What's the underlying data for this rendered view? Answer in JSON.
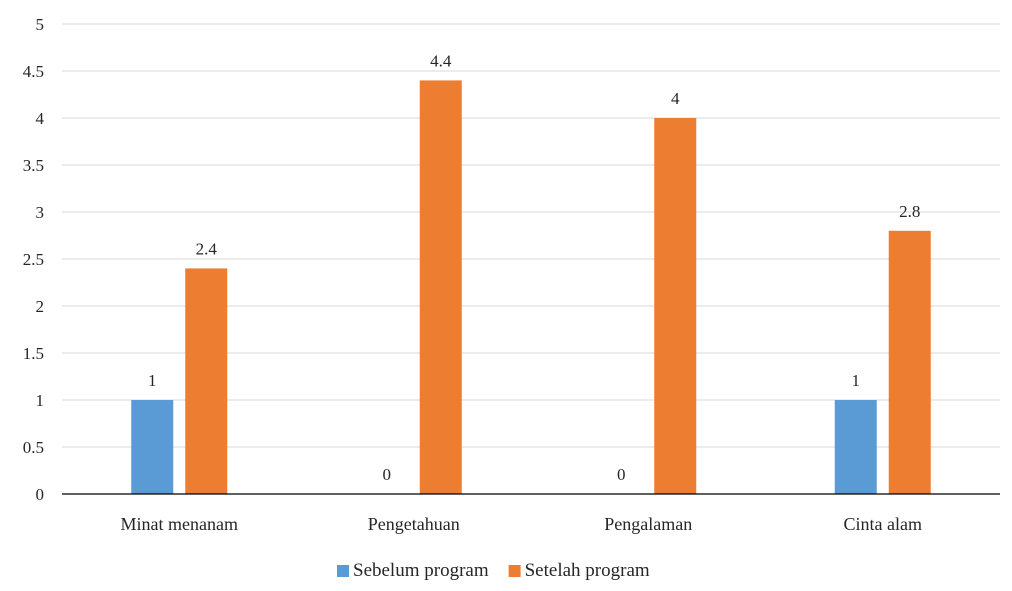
{
  "chart_data": {
    "type": "bar",
    "categories": [
      "Minat menanam",
      "Pengetahuan",
      "Pengalaman",
      "Cinta alam"
    ],
    "series": [
      {
        "name": "Sebelum program",
        "values": [
          1,
          0,
          0,
          1
        ],
        "color": "#5B9BD5"
      },
      {
        "name": "Setelah program",
        "values": [
          2.4,
          4.4,
          4,
          2.8
        ],
        "color": "#ED7D31"
      }
    ],
    "ylim": [
      0,
      5
    ],
    "yticks": [
      "0",
      "0.5",
      "1",
      "1.5",
      "2",
      "2.5",
      "3",
      "3.5",
      "4",
      "4.5",
      "5"
    ],
    "ytick_values": [
      0,
      0.5,
      1,
      1.5,
      2,
      2.5,
      3,
      3.5,
      4,
      4.5,
      5
    ],
    "data_labels": [
      [
        "1",
        "0",
        "0",
        "1"
      ],
      [
        "2.4",
        "4.4",
        "4",
        "2.8"
      ]
    ],
    "grid": true,
    "gridline_color": "#D9D9D9",
    "axis_color": "#000000",
    "legend_position": "bottom",
    "title": "",
    "xlabel": "",
    "ylabel": ""
  }
}
